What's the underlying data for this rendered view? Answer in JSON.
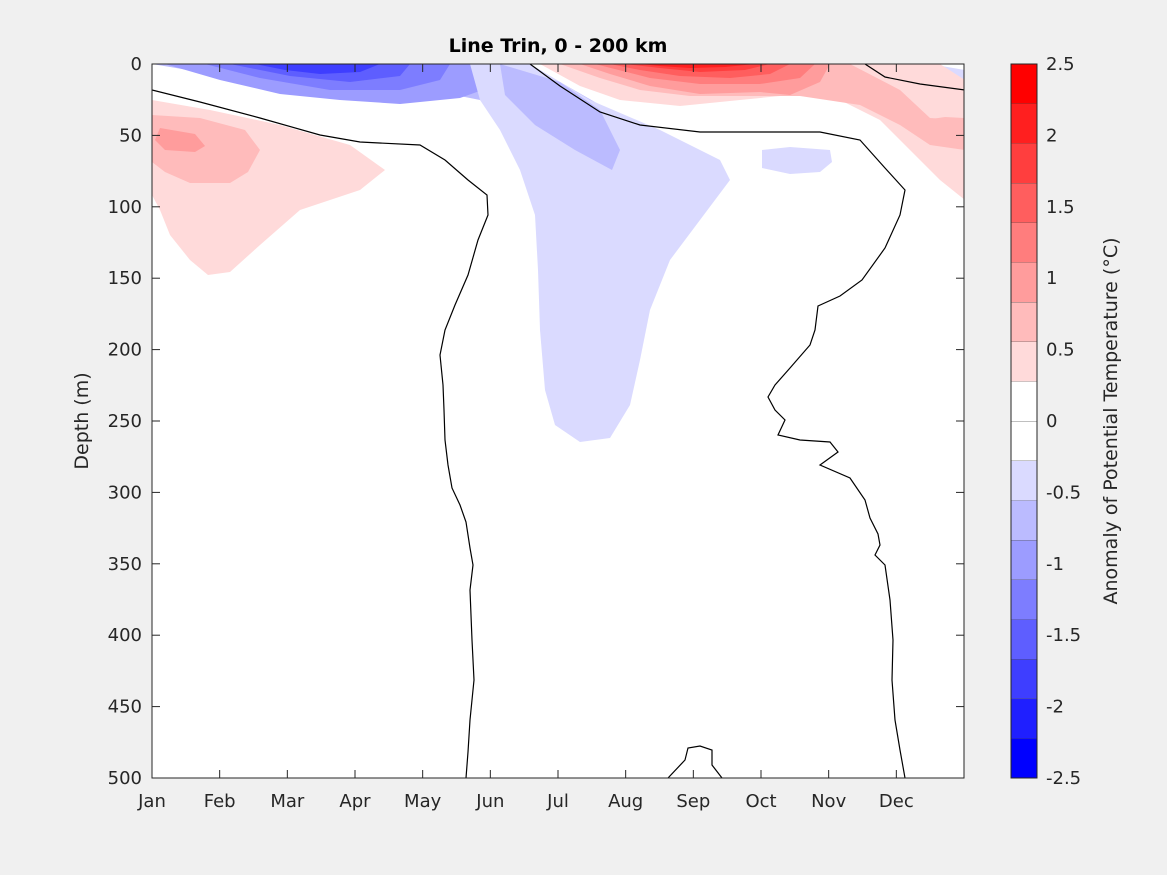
{
  "chart_data": {
    "type": "contour",
    "title": "Line Trin, 0 - 200 km",
    "xlabel": "",
    "ylabel": "Depth (m)",
    "colorbar_label": "Anomaly of Potential Temperature (°C)",
    "x_ticks": [
      "Jan",
      "Feb",
      "Mar",
      "Apr",
      "May",
      "Jun",
      "Jul",
      "Aug",
      "Sep",
      "Oct",
      "Nov",
      "Dec"
    ],
    "x_range_months": [
      0,
      12
    ],
    "y_ticks": [
      0,
      50,
      100,
      150,
      200,
      250,
      300,
      350,
      400,
      450,
      500
    ],
    "y_range_m": [
      0,
      500
    ],
    "y_reversed": true,
    "colorbar_ticks": [
      2.5,
      2,
      1.5,
      1,
      0.5,
      0,
      -0.5,
      -1,
      -1.5,
      -2,
      -2.5
    ],
    "colorbar_ticks_text": [
      "2.5",
      "2",
      "1.5",
      "1",
      "0.5",
      "0",
      "-0.5",
      "-1",
      "-1.5",
      "-2",
      "-2.5"
    ],
    "colorbar_levels": [
      -2.5,
      -2.25,
      -2,
      -1.75,
      -1.5,
      -1.25,
      -1,
      -0.75,
      -0.5,
      -0.25,
      0,
      0.25,
      0.5,
      0.75,
      1,
      1.25,
      1.5,
      1.75,
      2,
      2.25,
      2.5
    ],
    "colorbar_colors": [
      "#0000ff",
      "#1f1fff",
      "#3e3eff",
      "#5e5eff",
      "#7d7dff",
      "#9c9cff",
      "#bbbbff",
      "#dadaff",
      "#ffffff",
      "#ffffff",
      "#ffdada",
      "#ffbbbb",
      "#ff9c9c",
      "#ff7d7d",
      "#ff5e5e",
      "#ff3e3e",
      "#ff1f1f",
      "#ff0000"
    ],
    "grid": false,
    "colors": {
      "background": "#f0f0f0",
      "plot_area": "#ffffff",
      "zero_contour": "#000000"
    },
    "features": [
      {
        "kind": "cold anomaly",
        "months": [
          1.5,
          3.5
        ],
        "depth_m": [
          0,
          20
        ],
        "min_value": -2
      },
      {
        "kind": "warm anomaly",
        "months": [
          7.5,
          9.0
        ],
        "depth_m": [
          0,
          15
        ],
        "max_value": 2.5
      },
      {
        "kind": "warm anomaly",
        "months": [
          0,
          3.5
        ],
        "depth_m": [
          20,
          150
        ],
        "max_value": 0.75
      },
      {
        "kind": "cold anomaly",
        "months": [
          5.5,
          8.5
        ],
        "depth_m": [
          0,
          265
        ],
        "min_value": -0.75
      }
    ]
  }
}
